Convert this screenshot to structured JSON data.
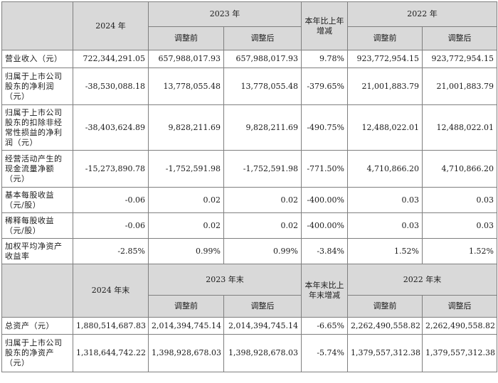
{
  "header1": {
    "y2024": "2024 年",
    "y2023": "2023 年",
    "change": "本年比上年增减",
    "y2022": "2022 年",
    "adj_before": "调整前",
    "adj_after": "调整后"
  },
  "rows1": [
    {
      "label": "营业收入（元）",
      "v2024": "722,344,291.05",
      "v2023_before": "657,988,017.93",
      "v2023_after": "657,988,017.93",
      "change": "9.78%",
      "v2022_before": "923,772,954.15",
      "v2022_after": "923,772,954.15"
    },
    {
      "label": "归属于上市公司股东的净利润（元）",
      "v2024": "-38,530,088.18",
      "v2023_before": "13,778,055.48",
      "v2023_after": "13,778,055.48",
      "change": "-379.65%",
      "v2022_before": "21,001,883.79",
      "v2022_after": "21,001,883.79"
    },
    {
      "label": "归属于上市公司股东的扣除非经常性损益的净利润（元）",
      "v2024": "-38,403,624.89",
      "v2023_before": "9,828,211.69",
      "v2023_after": "9,828,211.69",
      "change": "-490.75%",
      "v2022_before": "12,488,022.01",
      "v2022_after": "12,488,022.01"
    },
    {
      "label": "经营活动产生的现金流量净额（元）",
      "v2024": "-15,273,890.78",
      "v2023_before": "-1,752,591.98",
      "v2023_after": "-1,752,591.98",
      "change": "-771.50%",
      "v2022_before": "4,710,866.20",
      "v2022_after": "4,710,866.20"
    },
    {
      "label": "基本每股收益（元/股）",
      "v2024": "-0.06",
      "v2023_before": "0.02",
      "v2023_after": "0.02",
      "change": "-400.00%",
      "v2022_before": "0.03",
      "v2022_after": "0.03"
    },
    {
      "label": "稀释每股收益（元/股）",
      "v2024": "-0.06",
      "v2023_before": "0.02",
      "v2023_after": "0.02",
      "change": "-400.00%",
      "v2022_before": "0.03",
      "v2022_after": "0.03"
    },
    {
      "label": "加权平均净资产收益率",
      "v2024": "-2.85%",
      "v2023_before": "0.99%",
      "v2023_after": "0.99%",
      "change": "-3.84%",
      "v2022_before": "1.52%",
      "v2022_after": "1.52%"
    }
  ],
  "header2": {
    "y2024": "2024 年末",
    "y2023": "2023 年末",
    "change": "本年末比上年末增减",
    "y2022": "2022 年末",
    "adj_before": "调整前",
    "adj_after": "调整后"
  },
  "rows2": [
    {
      "label": "总资产（元）",
      "v2024": "1,880,514,687.83",
      "v2023_before": "2,014,394,745.14",
      "v2023_after": "2,014,394,745.14",
      "change": "-6.65%",
      "v2022_before": "2,262,490,558.82",
      "v2022_after": "2,262,490,558.82"
    },
    {
      "label": "归属于上市公司股东的净资产（元）",
      "v2024": "1,318,644,742.22",
      "v2023_before": "1,398,928,678.03",
      "v2023_after": "1,398,928,678.03",
      "change": "-5.74%",
      "v2022_before": "1,379,557,312.38",
      "v2022_after": "1,379,557,312.38"
    }
  ]
}
